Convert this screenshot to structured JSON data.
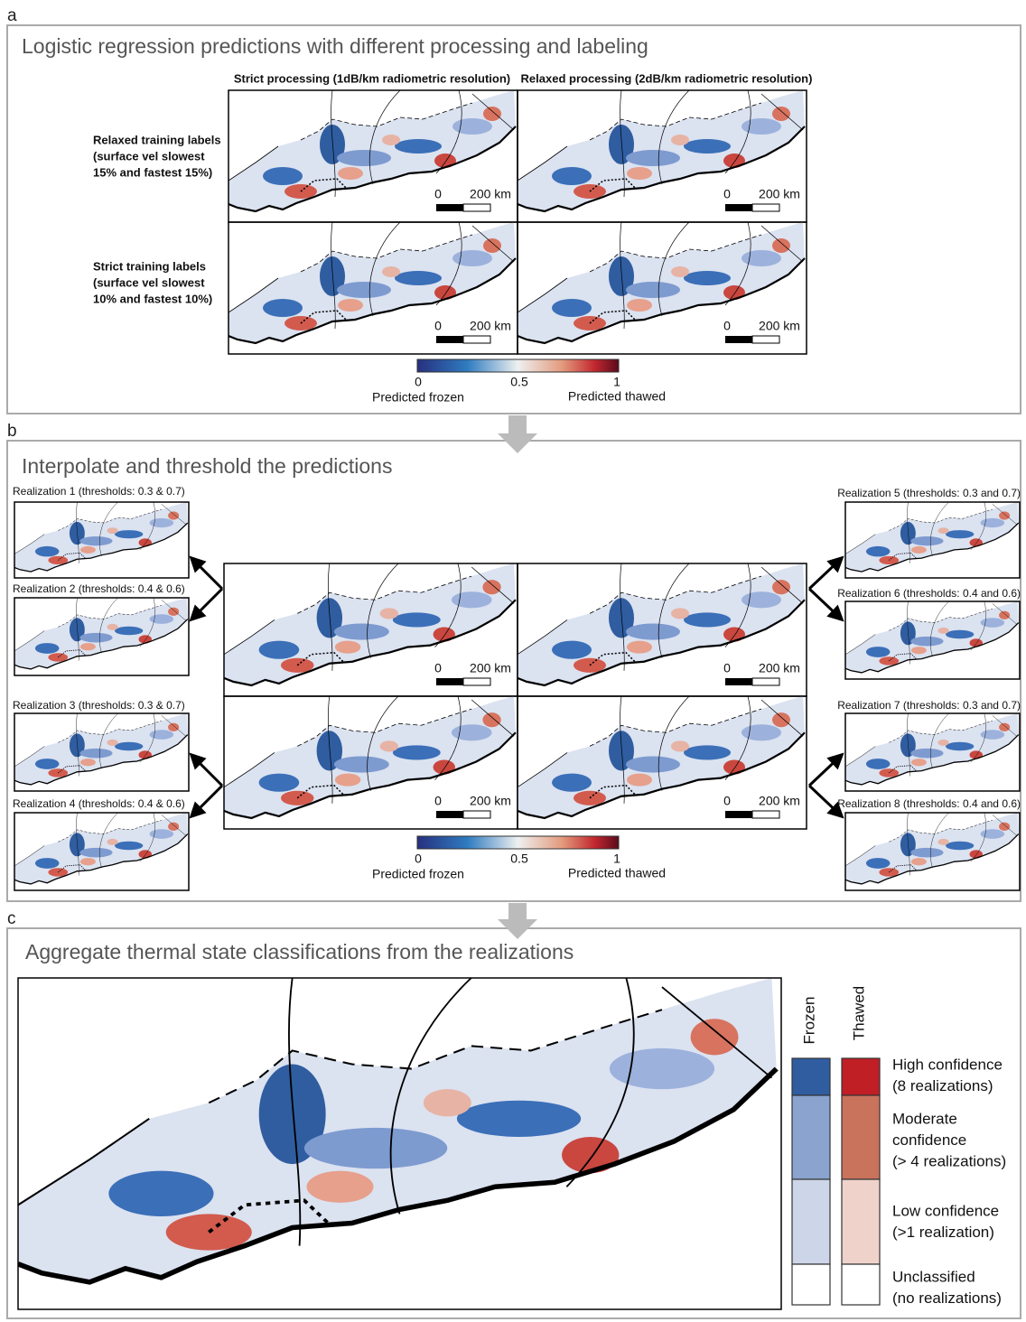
{
  "panel_a": {
    "label": "a",
    "title": "Logistic regression predictions with different processing and labeling",
    "columns": [
      "Strict processing (1dB/km radiometric resolution)",
      "Relaxed processing (2dB/km radiometric resolution)"
    ],
    "rows": [
      [
        "Relaxed training labels",
        "(surface vel slowest",
        "15% and fastest 15%)"
      ],
      [
        "Strict training labels",
        "(surface vel slowest",
        "10% and fastest 10%)"
      ]
    ]
  },
  "scale_bar": {
    "start": "0",
    "end": "200 km"
  },
  "colorbar": {
    "ticks": [
      "0",
      "0.5",
      "1"
    ],
    "left_label": "Predicted frozen",
    "right_label": "Predicted thawed"
  },
  "panel_b": {
    "label": "b",
    "title": "Interpolate and threshold the predictions",
    "realizations": [
      "Realization 1 (thresholds: 0.3 & 0.7)",
      "Realization 2 (thresholds: 0.4 & 0.6)",
      "Realization 3 (thresholds: 0.3 & 0.7)",
      "Realization 4 (thresholds: 0.4 & 0.6)",
      "Realization 5 (thresholds: 0.3 and 0.7)",
      "Realization 6 (thresholds: 0.4 and 0.6)",
      "Realization 7 (thresholds: 0.3 and 0.7)",
      "Realization 8 (thresholds: 0.4 and 0.6)"
    ]
  },
  "panel_c": {
    "label": "c",
    "title": "Aggregate thermal state classifications from the realizations",
    "columns": [
      "Frozen",
      "Thawed"
    ],
    "legend": [
      [
        "High confidence",
        "(8 realizations)"
      ],
      [
        "Moderate",
        "confidence",
        "(> 4 realizations)"
      ],
      [
        "Low confidence",
        "(>1 realization)"
      ],
      [
        "Unclassified",
        "(no realizations)"
      ]
    ]
  }
}
